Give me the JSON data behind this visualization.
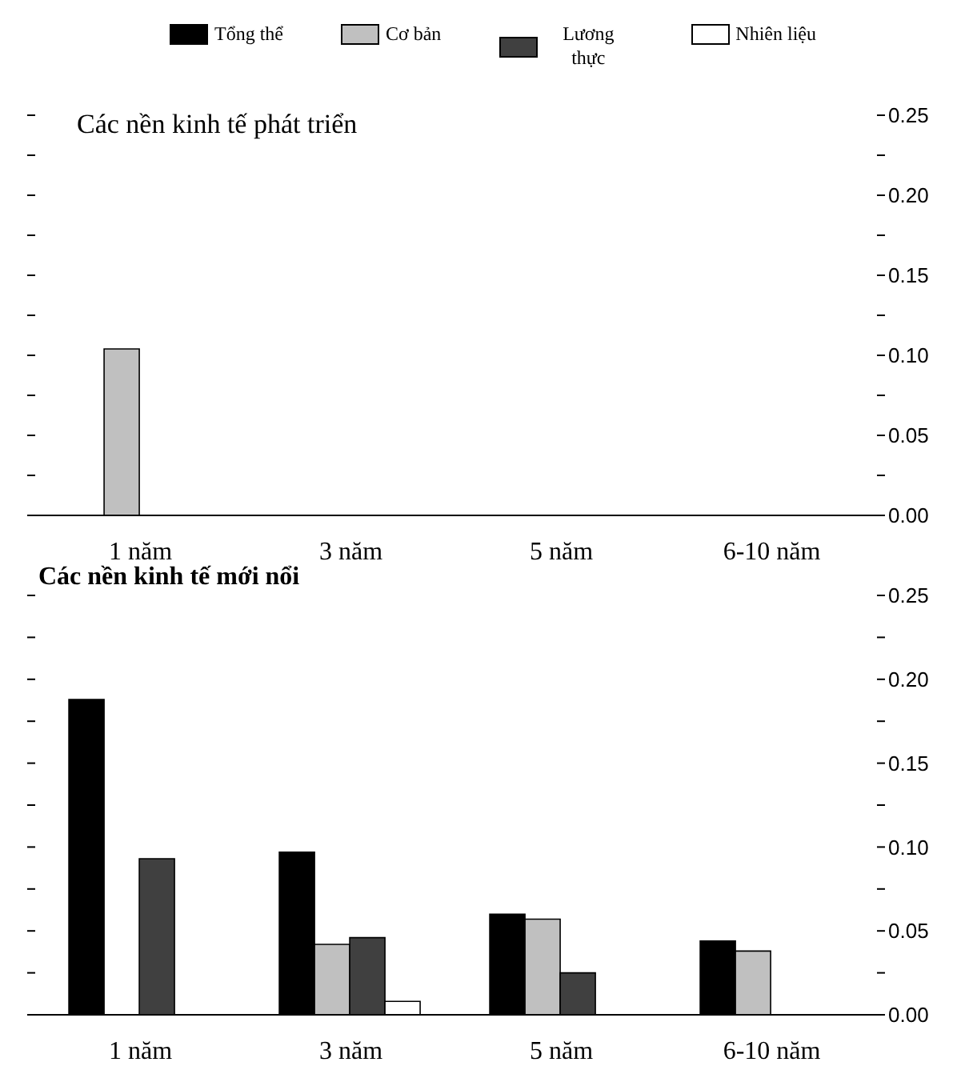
{
  "chart_data": [
    {
      "type": "bar",
      "title": "Các nền kinh tế phát triển",
      "categories": [
        "1 năm",
        "3 năm",
        "5 năm",
        "6-10 năm"
      ],
      "series": [
        {
          "name": "Tổng thể",
          "color": "#000000",
          "values": [
            null,
            null,
            null,
            null
          ]
        },
        {
          "name": "Cơ bản",
          "color": "#c0c0c0",
          "values": [
            0.104,
            null,
            null,
            null
          ]
        },
        {
          "name": "Lương thực",
          "color": "#404040",
          "values": [
            null,
            null,
            null,
            null
          ]
        },
        {
          "name": "Nhiên liệu",
          "color": "#ffffff",
          "values": [
            null,
            null,
            null,
            null
          ]
        }
      ],
      "ylim": [
        0,
        0.25
      ],
      "yticks": [
        {
          "value": 0,
          "label": "0.00"
        },
        {
          "value": 0.025,
          "label": null
        },
        {
          "value": 0.05,
          "label": "0.05"
        },
        {
          "value": 0.075,
          "label": null
        },
        {
          "value": 0.1,
          "label": "0.10"
        },
        {
          "value": 0.125,
          "label": null
        },
        {
          "value": 0.15,
          "label": "0.15"
        },
        {
          "value": 0.175,
          "label": null
        },
        {
          "value": 0.2,
          "label": "0.20"
        },
        {
          "value": 0.225,
          "label": null
        },
        {
          "value": 0.25,
          "label": "0.25"
        }
      ],
      "grid": false,
      "legend": "top"
    },
    {
      "type": "bar",
      "title": "Các nền kinh tế mới nổi",
      "categories": [
        "1 năm",
        "3 năm",
        "5 năm",
        "6-10 năm"
      ],
      "series": [
        {
          "color": "#000000",
          "values": [
            0.188,
            0.097,
            0.06,
            0.044
          ]
        },
        {
          "color": "#c0c0c0",
          "values": [
            null,
            0.042,
            0.057,
            0.038
          ]
        },
        {
          "color": "#404040",
          "values": [
            0.093,
            0.046,
            0.025,
            null
          ]
        },
        {
          "color": "#ffffff",
          "values": [
            null,
            0.008,
            null,
            null
          ]
        }
      ],
      "ylim": [
        0,
        0.25
      ],
      "yticks": [
        {
          "value": 0,
          "label": "0.00"
        },
        {
          "value": 0.025,
          "label": null
        },
        {
          "value": 0.05,
          "label": "0.05"
        },
        {
          "value": 0.075,
          "label": null
        },
        {
          "value": 0.1,
          "label": "0.10"
        },
        {
          "value": 0.125,
          "label": null
        },
        {
          "value": 0.15,
          "label": "0.15"
        },
        {
          "value": 0.175,
          "label": null
        },
        {
          "value": 0.2,
          "label": "0.20"
        },
        {
          "value": 0.225,
          "label": null
        },
        {
          "value": 0.25,
          "label": "0.25"
        }
      ],
      "grid": false
    }
  ]
}
